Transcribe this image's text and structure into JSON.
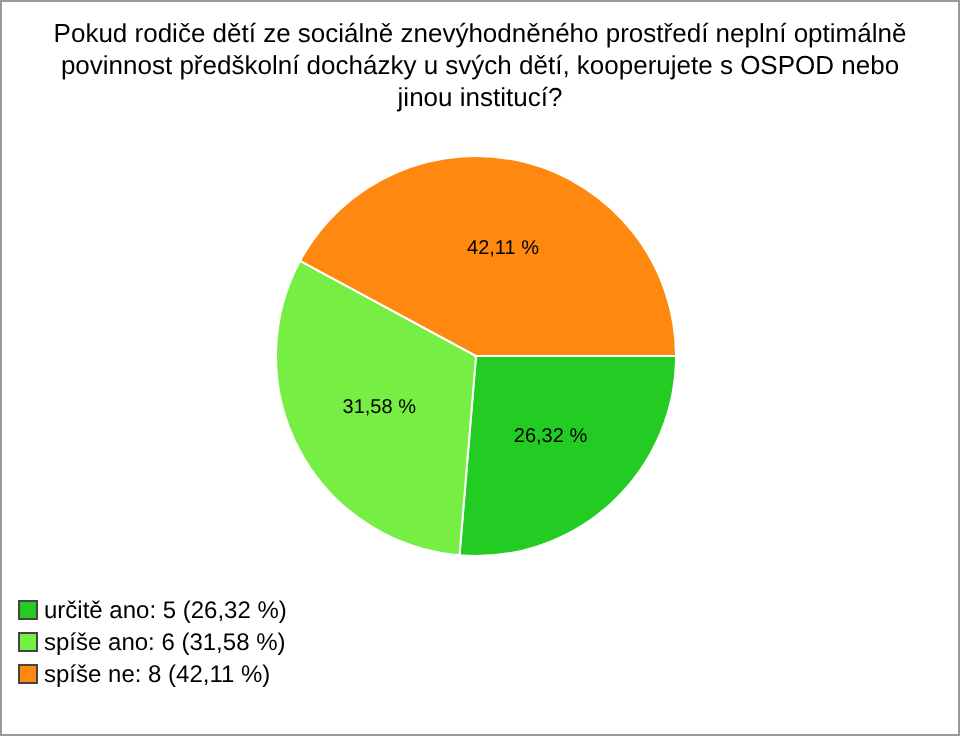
{
  "chart_data": {
    "type": "pie",
    "title": "Pokud rodiče dětí ze sociálně znevýhodněného prostředí neplní optimálně povinnost předškolní docházky u svých dětí, kooperujete s OSPOD nebo jinou institucí?",
    "categories": [
      "určitě ano: 5 (26,32 %)",
      "spíše ano: 6 (31,58 %)",
      "spíše ne: 8 (42,11 %)"
    ],
    "values": [
      26.32,
      31.58,
      42.11
    ],
    "value_labels": [
      "26,32 %",
      "31,58 %",
      "42,11 %"
    ],
    "colors": [
      "#22cc22",
      "#77ee44",
      "#ff8811"
    ],
    "legend": "bottom left"
  }
}
